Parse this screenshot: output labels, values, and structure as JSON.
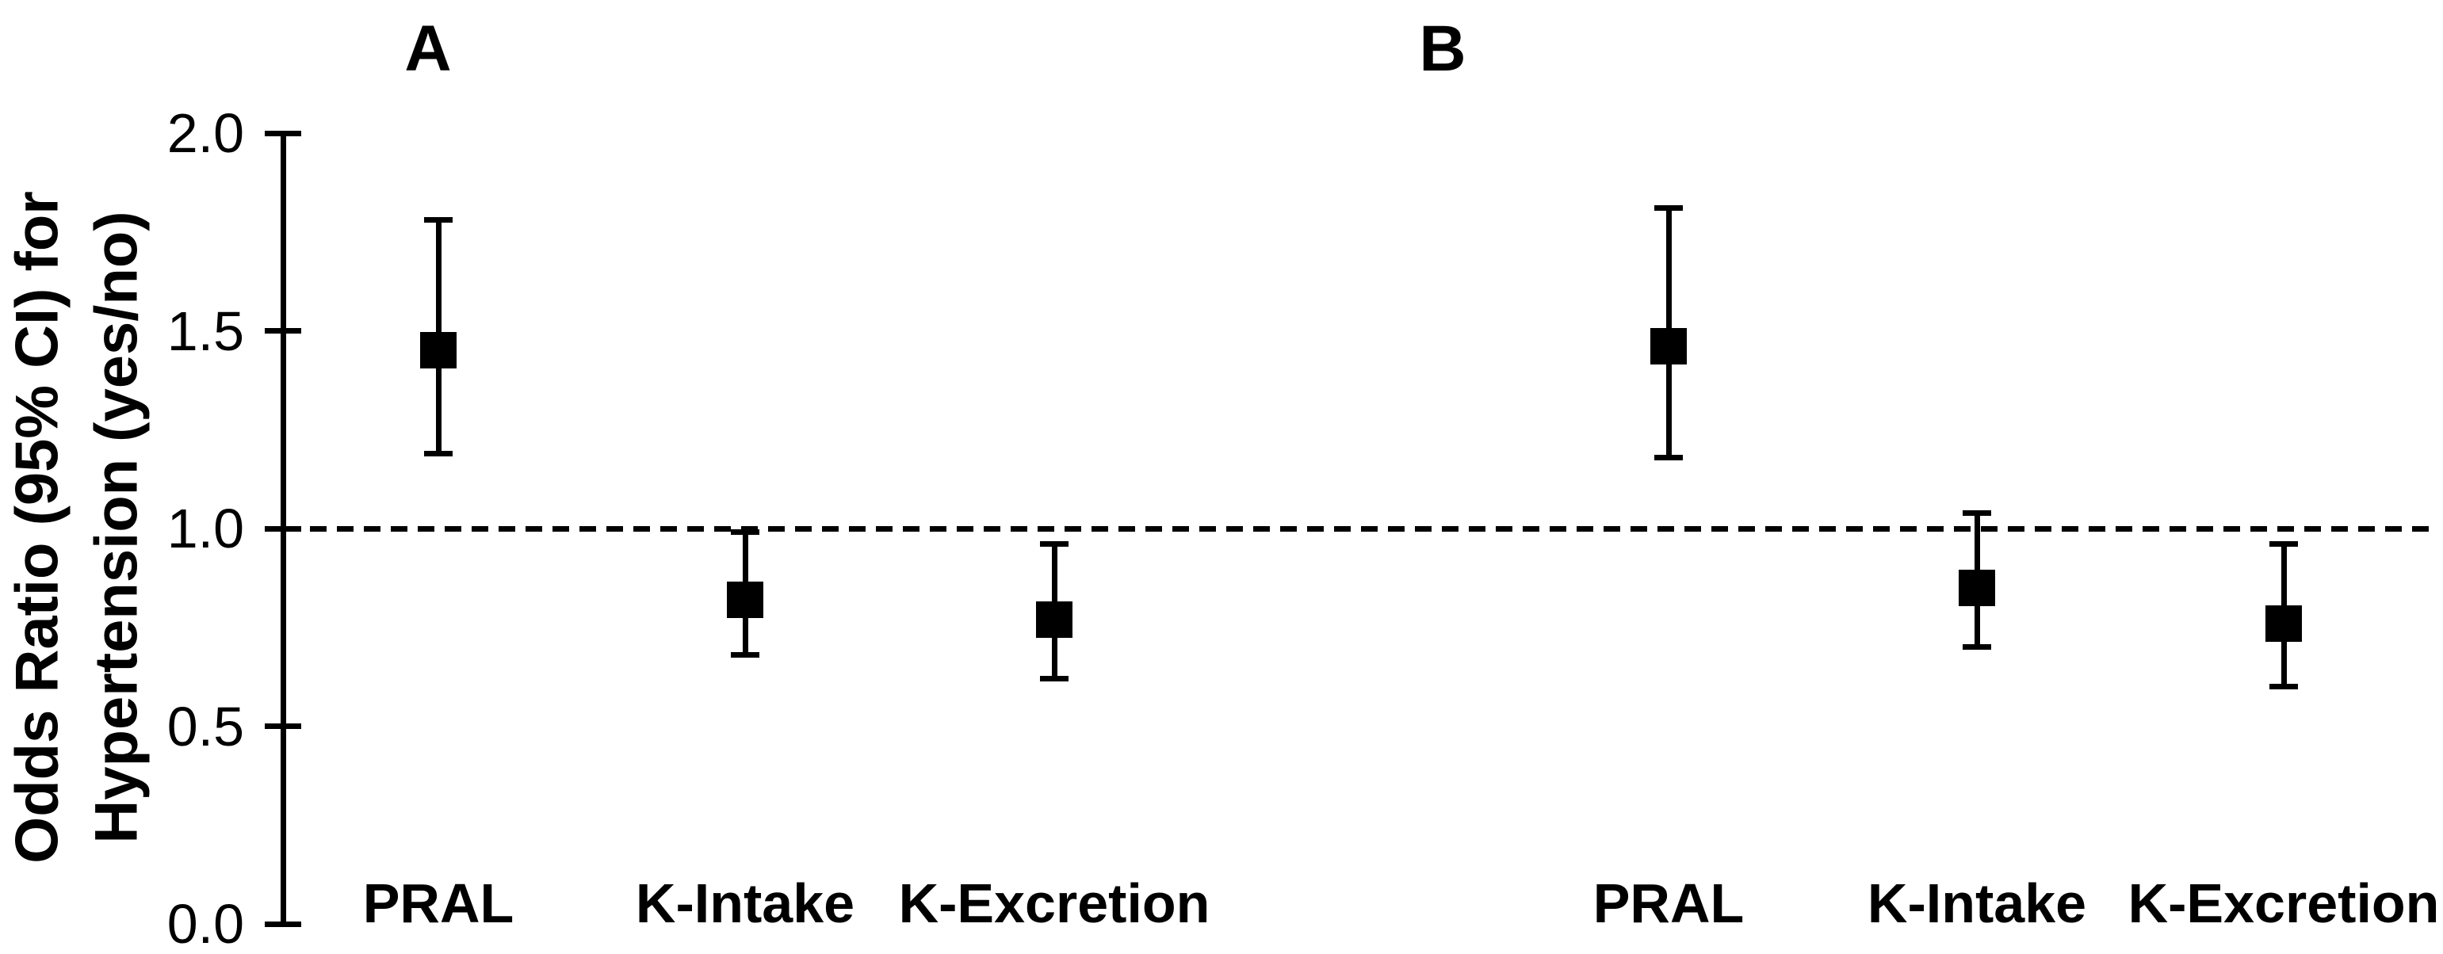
{
  "figure": {
    "background_color": "#ffffff",
    "ink_color": "#000000"
  },
  "chart_data": {
    "type": "scatter",
    "subtype": "point-estimate-with-95ci-error-bars",
    "title": "",
    "ylabel_lines": [
      "Odds Ratio (95% CI) for",
      "Hypertension (yes/no)"
    ],
    "xlabel": "",
    "y_axis": {
      "range": [
        0.0,
        2.0
      ],
      "ticks": [
        2.0,
        1.5,
        1.0,
        0.5,
        0.0
      ],
      "tick_labels": [
        "2.0",
        "1.5",
        "1.0",
        "0.5",
        "0.0"
      ],
      "grid": false
    },
    "reference_line": {
      "value": 1.0,
      "style": "dashed"
    },
    "legend": "none",
    "marker": "filled-black-square",
    "panels": [
      {
        "label": "A",
        "categories": [
          "PRAL",
          "K-Intake",
          "K-Excretion"
        ],
        "points": [
          {
            "category": "PRAL",
            "odds_ratio": 1.45,
            "ci_low": 1.19,
            "ci_high": 1.78
          },
          {
            "category": "K-Intake",
            "odds_ratio": 0.82,
            "ci_low": 0.68,
            "ci_high": 0.99
          },
          {
            "category": "K-Excretion",
            "odds_ratio": 0.77,
            "ci_low": 0.62,
            "ci_high": 0.96
          }
        ]
      },
      {
        "label": "B",
        "categories": [
          "PRAL",
          "K-Intake",
          "K-Excretion"
        ],
        "points": [
          {
            "category": "PRAL",
            "odds_ratio": 1.46,
            "ci_low": 1.18,
            "ci_high": 1.81
          },
          {
            "category": "K-Intake",
            "odds_ratio": 0.85,
            "ci_low": 0.7,
            "ci_high": 1.04
          },
          {
            "category": "K-Excretion",
            "odds_ratio": 0.76,
            "ci_low": 0.6,
            "ci_high": 0.96
          }
        ]
      }
    ]
  }
}
